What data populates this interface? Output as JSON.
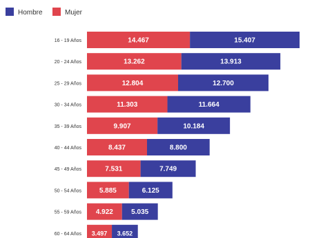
{
  "chart_data": {
    "type": "bar",
    "orientation": "horizontal",
    "stacked": true,
    "legend_position": "top-left",
    "grid": false,
    "categories": [
      "16 - 19 Años",
      "20 - 24 Años",
      "25 - 29 Años",
      "30 - 34 Años",
      "35 - 39 Años",
      "40 - 44 Años",
      "45 - 49 Años",
      "50 - 54 Años",
      "55 - 59 Años",
      "60 - 64 Años"
    ],
    "series": [
      {
        "name": "Mujer",
        "color": "#e0454d",
        "values": [
          14467,
          13262,
          12804,
          11303,
          9907,
          8437,
          7531,
          5885,
          4922,
          3497
        ],
        "labels": [
          "14.467",
          "13.262",
          "12.804",
          "11.303",
          "9.907",
          "8.437",
          "7.531",
          "5.885",
          "4.922",
          "3.497"
        ]
      },
      {
        "name": "Hombre",
        "color": "#3a3f9e",
        "values": [
          15407,
          13913,
          12700,
          11664,
          10184,
          8800,
          7749,
          6125,
          5035,
          3652
        ],
        "labels": [
          "15.407",
          "13.913",
          "12.700",
          "11.664",
          "10.184",
          "8.800",
          "7.749",
          "6.125",
          "5.035",
          "3.652"
        ]
      }
    ],
    "legend": [
      "Hombre",
      "Mujer"
    ]
  }
}
